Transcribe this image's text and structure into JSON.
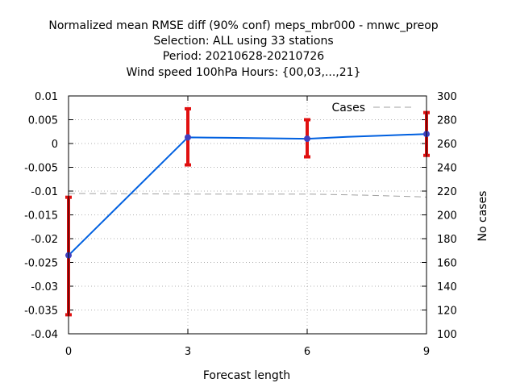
{
  "chart_data": {
    "type": "line",
    "title_lines": [
      "Normalized mean RMSE diff (90% conf) meps_mbr000 - mnwc_preop",
      "Selection: ALL using    33 stations",
      "Period: 20210628-20210726",
      "Wind speed 100hPa   Hours: {00,03,...,21}"
    ],
    "xlabel": "Forecast length",
    "ylabel": "",
    "y2label": "No cases",
    "x_ticks": [
      "0",
      "3",
      "6",
      "9"
    ],
    "y_ticks": [
      "0.01",
      "0.005",
      "0",
      "-0.005",
      "-0.01",
      "-0.015",
      "-0.02",
      "-0.025",
      "-0.03",
      "-0.035",
      "-0.04"
    ],
    "y2_ticks": [
      "300",
      "280",
      "260",
      "240",
      "220",
      "200",
      "180",
      "160",
      "140",
      "120",
      "100"
    ],
    "xlim": [
      0,
      9
    ],
    "ylim": [
      -0.04,
      0.01
    ],
    "y2lim": [
      100,
      300
    ],
    "grid": true,
    "legend": {
      "label": "Cases",
      "placement": "top-right"
    },
    "series": [
      {
        "values": [
          {
            "x": 0,
            "y": -0.0235
          },
          {
            "x": 3,
            "y": 0.0013
          },
          {
            "x": 4,
            "y": 0.0012
          },
          {
            "x": 5,
            "y": 0.0011
          },
          {
            "x": 6,
            "y": 0.001
          },
          {
            "x": 7,
            "y": 0.0014
          },
          {
            "x": 8,
            "y": 0.0017
          },
          {
            "x": 9,
            "y": 0.002
          }
        ],
        "color": "#0060e0",
        "marker_color": "#4040c0"
      },
      {
        "name": "Cases",
        "axis": "right",
        "values": [
          {
            "x": 0,
            "y": 218
          },
          {
            "x": 3,
            "y": 217.5
          },
          {
            "x": 6,
            "y": 217.5
          },
          {
            "x": 7.5,
            "y": 216.5
          },
          {
            "x": 9,
            "y": 215
          }
        ],
        "color": "#a0a0a0",
        "dashed": true
      }
    ],
    "error_bars": [
      {
        "x": 0,
        "low": -0.036,
        "high": -0.0113
      },
      {
        "x": 3,
        "low": -0.0045,
        "high": 0.0073
      },
      {
        "x": 6,
        "low": -0.0028,
        "high": 0.005
      },
      {
        "x": 9,
        "low": -0.0025,
        "high": 0.0065
      }
    ],
    "error_bar_color": "#e01010"
  }
}
